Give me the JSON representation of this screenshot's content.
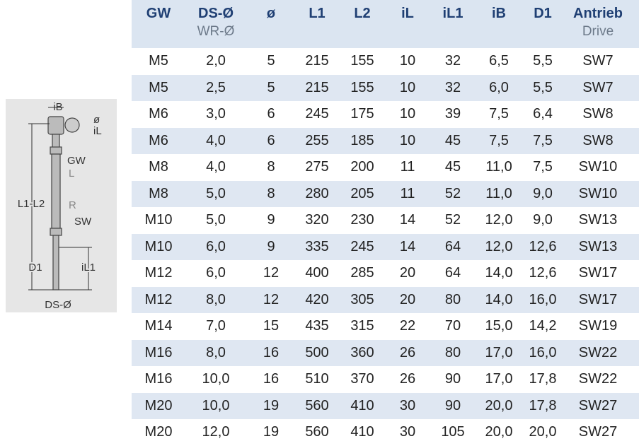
{
  "drawing": {
    "labels": {
      "iB": "iB",
      "diameter": "ø",
      "iL": "iL",
      "GW": "GW",
      "L": "L",
      "R": "R",
      "SW": "SW",
      "L1L2": "L1-L2",
      "D1": "D1",
      "iL1": "iL1",
      "DS": "DS-Ø"
    }
  },
  "table": {
    "columns": [
      {
        "label": "GW"
      },
      {
        "label": "DS-Ø",
        "sublabel": "WR-Ø"
      },
      {
        "label": "ø"
      },
      {
        "label": "L1"
      },
      {
        "label": "L2"
      },
      {
        "label": "iL"
      },
      {
        "label": "iL1"
      },
      {
        "label": "iB"
      },
      {
        "label": "D1"
      },
      {
        "label": "Antrieb",
        "sublabel": "Drive"
      }
    ],
    "rows": [
      [
        "M5",
        "2,0",
        "5",
        "215",
        "155",
        "10",
        "32",
        "6,5",
        "5,5",
        "SW7"
      ],
      [
        "M5",
        "2,5",
        "5",
        "215",
        "155",
        "10",
        "32",
        "6,0",
        "5,5",
        "SW7"
      ],
      [
        "M6",
        "3,0",
        "6",
        "245",
        "175",
        "10",
        "39",
        "7,5",
        "6,4",
        "SW8"
      ],
      [
        "M6",
        "4,0",
        "6",
        "255",
        "185",
        "10",
        "45",
        "7,5",
        "7,5",
        "SW8"
      ],
      [
        "M8",
        "4,0",
        "8",
        "275",
        "200",
        "11",
        "45",
        "11,0",
        "7,5",
        "SW10"
      ],
      [
        "M8",
        "5,0",
        "8",
        "280",
        "205",
        "11",
        "52",
        "11,0",
        "9,0",
        "SW10"
      ],
      [
        "M10",
        "5,0",
        "9",
        "320",
        "230",
        "14",
        "52",
        "12,0",
        "9,0",
        "SW13"
      ],
      [
        "M10",
        "6,0",
        "9",
        "335",
        "245",
        "14",
        "64",
        "12,0",
        "12,6",
        "SW13"
      ],
      [
        "M12",
        "6,0",
        "12",
        "400",
        "285",
        "20",
        "64",
        "14,0",
        "12,6",
        "SW17"
      ],
      [
        "M12",
        "8,0",
        "12",
        "420",
        "305",
        "20",
        "80",
        "14,0",
        "16,0",
        "SW17"
      ],
      [
        "M14",
        "7,0",
        "15",
        "435",
        "315",
        "22",
        "70",
        "15,0",
        "14,2",
        "SW19"
      ],
      [
        "M16",
        "8,0",
        "16",
        "500",
        "360",
        "26",
        "80",
        "17,0",
        "16,0",
        "SW22"
      ],
      [
        "M16",
        "10,0",
        "16",
        "510",
        "370",
        "26",
        "90",
        "17,0",
        "17,8",
        "SW22"
      ],
      [
        "M20",
        "10,0",
        "19",
        "560",
        "410",
        "30",
        "90",
        "20,0",
        "17,8",
        "SW27"
      ],
      [
        "M20",
        "12,0",
        "19",
        "560",
        "410",
        "30",
        "105",
        "20,0",
        "20,0",
        "SW27"
      ]
    ]
  }
}
